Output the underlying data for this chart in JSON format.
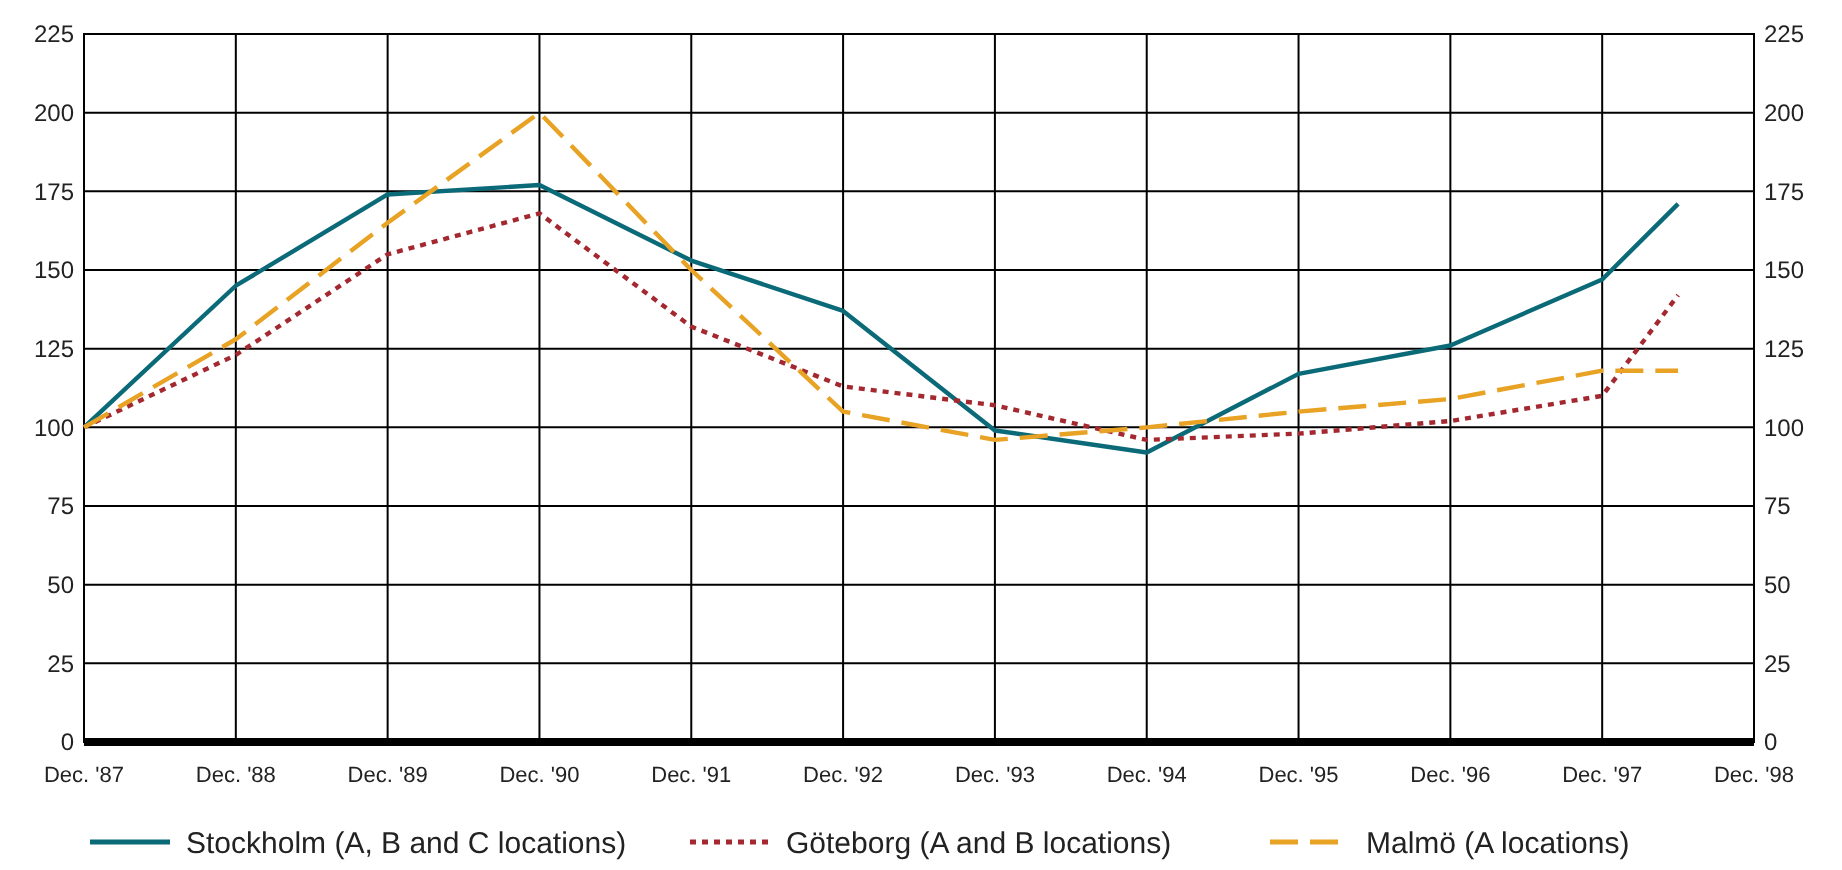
{
  "chart_data": {
    "type": "line",
    "categories": [
      "Dec. '87",
      null,
      "Dec. '88",
      null,
      "Dec. '89",
      null,
      "Dec. '90",
      null,
      "Dec. '91",
      null,
      "Dec. '92",
      null,
      "Dec. '93",
      null,
      "Dec. '94",
      null,
      "Dec. '95",
      null,
      "Dec. '96",
      null,
      "Dec. '97",
      null,
      "Dec. '98"
    ],
    "series": [
      {
        "name": "Stockholm (A, B and C locations)",
        "color": "#0b6a78",
        "line_style": "solid",
        "values": [
          100,
          null,
          145,
          null,
          174,
          null,
          177,
          null,
          153,
          null,
          137,
          null,
          99,
          null,
          92,
          null,
          117,
          null,
          126,
          null,
          147,
          171,
          null
        ]
      },
      {
        "name": "Göteborg (A and B locations)",
        "color": "#a3282f",
        "line_style": "dotted",
        "values": [
          100,
          null,
          123,
          null,
          155,
          null,
          168,
          null,
          132,
          null,
          113,
          null,
          107,
          null,
          96,
          null,
          98,
          null,
          102,
          null,
          110,
          142,
          null
        ]
      },
      {
        "name": "Malmö (A locations)",
        "color": "#e8a224",
        "line_style": "dashed",
        "values": [
          100,
          null,
          128,
          null,
          165,
          null,
          200,
          null,
          150,
          null,
          105,
          null,
          96,
          null,
          100,
          null,
          105,
          null,
          109,
          null,
          118,
          118,
          null
        ]
      }
    ],
    "ylim": [
      0,
      225
    ],
    "yticks": [
      0,
      25,
      50,
      75,
      100,
      125,
      150,
      175,
      200,
      225
    ],
    "y2lim": [
      0,
      225
    ],
    "y2ticks": [
      0,
      25,
      50,
      75,
      100,
      125,
      150,
      175,
      200,
      225
    ],
    "grid": true,
    "legend": "bottom",
    "marker": "none"
  }
}
